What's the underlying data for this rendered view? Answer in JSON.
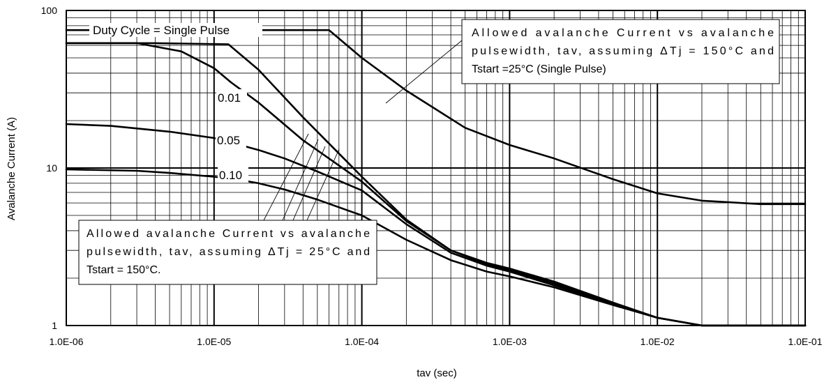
{
  "chart_data": {
    "type": "line",
    "title": "",
    "xlabel": "tav (sec)",
    "ylabel": "Avalanche Current (A)",
    "x_scale": "log",
    "y_scale": "log",
    "xlim": [
      1e-06,
      0.1
    ],
    "ylim": [
      1,
      100
    ],
    "grid": true,
    "x_tick_labels": [
      "1.0E-06",
      "1.0E-05",
      "1.0E-04",
      "1.0E-03",
      "1.0E-02",
      "1.0E-01"
    ],
    "y_tick_labels": [
      "1",
      "10",
      "100"
    ],
    "series": [
      {
        "name": "Single Pulse",
        "label": "Duty Cycle = Single Pulse",
        "points": [
          [
            1e-06,
            62
          ],
          [
            4e-06,
            62
          ],
          [
            1.25e-05,
            61
          ],
          [
            2e-05,
            42
          ],
          [
            4e-05,
            21
          ],
          [
            0.0001,
            8.8
          ],
          [
            0.0002,
            4.7
          ],
          [
            0.0004,
            3.0
          ],
          [
            0.0007,
            2.5
          ],
          [
            0.001,
            2.3
          ],
          [
            0.002,
            1.9
          ],
          [
            0.005,
            1.4
          ],
          [
            0.01,
            1.12
          ],
          [
            0.02,
            1.0
          ],
          [
            0.1,
            1.0
          ]
        ]
      },
      {
        "name": "0.01",
        "label": "0.01",
        "points": [
          [
            1e-06,
            62
          ],
          [
            3e-06,
            62
          ],
          [
            6e-06,
            55
          ],
          [
            1e-05,
            43
          ],
          [
            1.3e-05,
            35
          ],
          [
            2e-05,
            26
          ],
          [
            4e-05,
            15
          ],
          [
            0.0001,
            8.2
          ],
          [
            0.0002,
            4.6
          ],
          [
            0.0004,
            3.0
          ],
          [
            0.0007,
            2.45
          ],
          [
            0.001,
            2.25
          ],
          [
            0.002,
            1.85
          ],
          [
            0.005,
            1.38
          ],
          [
            0.01,
            1.12
          ],
          [
            0.02,
            1.0
          ],
          [
            0.1,
            1.0
          ]
        ]
      },
      {
        "name": "0.05",
        "label": "0.05",
        "points": [
          [
            1e-06,
            19
          ],
          [
            2e-06,
            18.5
          ],
          [
            5e-06,
            17
          ],
          [
            1e-05,
            15.5
          ],
          [
            1.5e-05,
            14
          ],
          [
            2e-05,
            13
          ],
          [
            3e-05,
            11.5
          ],
          [
            5e-05,
            9.5
          ],
          [
            0.0001,
            7.2
          ],
          [
            0.0002,
            4.4
          ],
          [
            0.0004,
            2.9
          ],
          [
            0.0007,
            2.4
          ],
          [
            0.001,
            2.2
          ],
          [
            0.002,
            1.8
          ],
          [
            0.005,
            1.37
          ],
          [
            0.01,
            1.12
          ],
          [
            0.02,
            1.0
          ],
          [
            0.1,
            1.0
          ]
        ]
      },
      {
        "name": "0.10",
        "label": "0.10",
        "points": [
          [
            1e-06,
            9.8
          ],
          [
            3e-06,
            9.6
          ],
          [
            5e-06,
            9.3
          ],
          [
            1e-05,
            8.8
          ],
          [
            1.5e-05,
            8.4
          ],
          [
            2e-05,
            8.0
          ],
          [
            3e-05,
            7.3
          ],
          [
            5e-05,
            6.3
          ],
          [
            0.0001,
            5.0
          ],
          [
            0.0002,
            3.5
          ],
          [
            0.0004,
            2.6
          ],
          [
            0.0007,
            2.2
          ],
          [
            0.001,
            2.05
          ],
          [
            0.002,
            1.75
          ],
          [
            0.005,
            1.35
          ],
          [
            0.01,
            1.12
          ],
          [
            0.02,
            1.0
          ],
          [
            0.1,
            1.0
          ]
        ]
      },
      {
        "name": "Allowed avalanche Current vs avalanche pulsewidth, tav, assuming ΔTj = 150°C and Tstart =25°C (Single Pulse)",
        "label": "",
        "points": [
          [
            1e-06,
            75
          ],
          [
            2e-05,
            75
          ],
          [
            6e-05,
            75
          ],
          [
            0.0001,
            50
          ],
          [
            0.0002,
            31
          ],
          [
            0.0005,
            18
          ],
          [
            0.001,
            14
          ],
          [
            0.002,
            11.5
          ],
          [
            0.005,
            8.5
          ],
          [
            0.01,
            6.9
          ],
          [
            0.02,
            6.2
          ],
          [
            0.05,
            5.9
          ],
          [
            0.1,
            5.9
          ]
        ]
      }
    ],
    "annotations": [
      {
        "text": "Duty Cycle = Single Pulse"
      },
      {
        "text": "0.01"
      },
      {
        "text": "0.05"
      },
      {
        "text": "0.10"
      },
      {
        "text": "Allowed avalanche Current vs avalanche pulsewidth, tav, assuming ΔTj = 150°C and Tstart =25°C (Single Pulse)"
      },
      {
        "text": "Allowed avalanche Current vs avalanche pulsewidth, tav, assuming ΔTj = 25°C and Tstart = 150°C."
      }
    ]
  },
  "labels": {
    "duty_cycle": "Duty Cycle = Single Pulse",
    "d001": "0.01",
    "d005": "0.05",
    "d010": "0.10",
    "note_top_line1": "Allowed avalanche Current vs avalanche",
    "note_top_line2": "pulsewidth, tav, assuming ΔTj = 150°C and",
    "note_top_line3": "Tstart =25°C (Single Pulse)",
    "note_bottom_line1": "Allowed avalanche Current vs avalanche",
    "note_bottom_line2": "pulsewidth, tav, assuming ΔTj = 25°C and",
    "note_bottom_line3": "Tstart = 150°C."
  },
  "colors": {
    "line": "#000000",
    "grid_minor": "#000000",
    "background": "#ffffff"
  }
}
